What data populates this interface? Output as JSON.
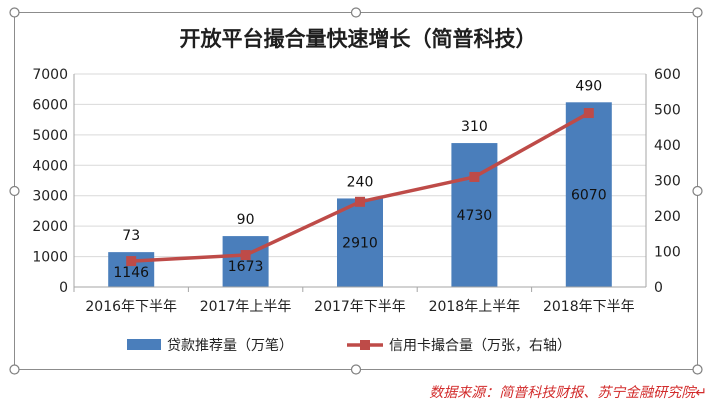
{
  "source_note": "数据来源：简普科技财报、苏宁金融研究院↵",
  "chart_data": {
    "type": "bar",
    "title": "开放平台撮合量快速增长（简普科技）",
    "categories": [
      "2016年下半年",
      "2017年上半年",
      "2017年下半年",
      "2018年上半年",
      "2018年下半年"
    ],
    "ylim": [
      0,
      7000
    ],
    "y_ticks": [
      0,
      1000,
      2000,
      3000,
      4000,
      5000,
      6000,
      7000
    ],
    "y2lim": [
      0,
      600
    ],
    "y2_ticks": [
      0,
      100,
      200,
      300,
      400,
      500,
      600
    ],
    "grid": true,
    "legend_position": "bottom",
    "series": [
      {
        "name": "贷款推荐量（万笔）",
        "type": "bar",
        "axis": "left",
        "values": [
          1146,
          1673,
          2910,
          4730,
          6070
        ],
        "color": "#4a7ebb"
      },
      {
        "name": "信用卡撮合量（万张，右轴）",
        "type": "line",
        "axis": "right",
        "values": [
          73,
          90,
          240,
          310,
          490
        ],
        "color": "#be4b48"
      }
    ]
  }
}
